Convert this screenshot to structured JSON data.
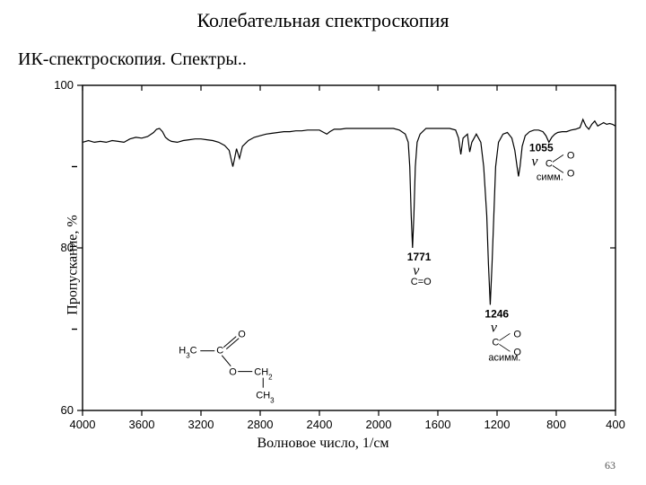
{
  "title": "Колебательная спектроскопия",
  "subtitle": "ИК-спектроскопия. Спектры..",
  "footer": "63",
  "ylabel": "Пропускание, %",
  "xlabel": "Волновое число, 1/см",
  "colors": {
    "bg": "#ffffff",
    "axis": "#000000",
    "line": "#000000",
    "text": "#000000"
  },
  "chart": {
    "type": "line",
    "xlim": [
      4000,
      400
    ],
    "ylim": [
      60,
      100
    ],
    "xticks": [
      4000,
      3600,
      3200,
      2800,
      2400,
      2000,
      1600,
      1200,
      800,
      400
    ],
    "yticks": [
      60,
      80,
      100
    ],
    "yminor": [
      70,
      90
    ],
    "line_width": 1.2,
    "tick_fontsize": 13,
    "label_fontsize": 16,
    "data": [
      [
        4000,
        93.0
      ],
      [
        3960,
        93.2
      ],
      [
        3920,
        93.0
      ],
      [
        3880,
        93.1
      ],
      [
        3840,
        93.0
      ],
      [
        3800,
        93.2
      ],
      [
        3760,
        93.1
      ],
      [
        3720,
        93.0
      ],
      [
        3680,
        93.4
      ],
      [
        3640,
        93.6
      ],
      [
        3600,
        93.5
      ],
      [
        3560,
        93.7
      ],
      [
        3520,
        94.2
      ],
      [
        3500,
        94.6
      ],
      [
        3480,
        94.7
      ],
      [
        3460,
        94.3
      ],
      [
        3440,
        93.6
      ],
      [
        3420,
        93.3
      ],
      [
        3400,
        93.1
      ],
      [
        3360,
        93.0
      ],
      [
        3320,
        93.2
      ],
      [
        3280,
        93.3
      ],
      [
        3240,
        93.4
      ],
      [
        3200,
        93.4
      ],
      [
        3160,
        93.3
      ],
      [
        3120,
        93.2
      ],
      [
        3080,
        93.0
      ],
      [
        3040,
        92.6
      ],
      [
        3010,
        92.0
      ],
      [
        2985,
        90.0
      ],
      [
        2975,
        90.8
      ],
      [
        2960,
        92.2
      ],
      [
        2940,
        91.0
      ],
      [
        2920,
        92.5
      ],
      [
        2880,
        93.2
      ],
      [
        2840,
        93.6
      ],
      [
        2800,
        93.8
      ],
      [
        2760,
        94.0
      ],
      [
        2720,
        94.1
      ],
      [
        2680,
        94.2
      ],
      [
        2640,
        94.3
      ],
      [
        2600,
        94.3
      ],
      [
        2560,
        94.4
      ],
      [
        2520,
        94.4
      ],
      [
        2480,
        94.5
      ],
      [
        2440,
        94.5
      ],
      [
        2400,
        94.5
      ],
      [
        2370,
        94.2
      ],
      [
        2350,
        94.0
      ],
      [
        2330,
        94.3
      ],
      [
        2300,
        94.6
      ],
      [
        2260,
        94.6
      ],
      [
        2220,
        94.7
      ],
      [
        2180,
        94.7
      ],
      [
        2140,
        94.7
      ],
      [
        2100,
        94.7
      ],
      [
        2060,
        94.7
      ],
      [
        2020,
        94.7
      ],
      [
        1980,
        94.7
      ],
      [
        1940,
        94.7
      ],
      [
        1900,
        94.7
      ],
      [
        1860,
        94.5
      ],
      [
        1820,
        94.0
      ],
      [
        1800,
        93.0
      ],
      [
        1790,
        90.0
      ],
      [
        1780,
        84.0
      ],
      [
        1771,
        80.0
      ],
      [
        1762,
        84.0
      ],
      [
        1752,
        90.0
      ],
      [
        1740,
        93.0
      ],
      [
        1720,
        94.0
      ],
      [
        1680,
        94.7
      ],
      [
        1640,
        94.7
      ],
      [
        1600,
        94.7
      ],
      [
        1560,
        94.7
      ],
      [
        1520,
        94.7
      ],
      [
        1480,
        94.5
      ],
      [
        1460,
        93.5
      ],
      [
        1445,
        91.5
      ],
      [
        1430,
        93.5
      ],
      [
        1400,
        94.0
      ],
      [
        1385,
        91.8
      ],
      [
        1370,
        93.0
      ],
      [
        1340,
        94.0
      ],
      [
        1310,
        93.0
      ],
      [
        1290,
        90.0
      ],
      [
        1270,
        84.0
      ],
      [
        1258,
        78.0
      ],
      [
        1246,
        73.0
      ],
      [
        1234,
        78.0
      ],
      [
        1222,
        84.0
      ],
      [
        1210,
        90.0
      ],
      [
        1190,
        93.0
      ],
      [
        1160,
        94.0
      ],
      [
        1130,
        94.2
      ],
      [
        1100,
        93.5
      ],
      [
        1080,
        92.0
      ],
      [
        1065,
        90.0
      ],
      [
        1055,
        88.8
      ],
      [
        1045,
        90.0
      ],
      [
        1030,
        92.5
      ],
      [
        1010,
        93.8
      ],
      [
        980,
        94.3
      ],
      [
        950,
        94.5
      ],
      [
        920,
        94.5
      ],
      [
        890,
        94.3
      ],
      [
        870,
        93.8
      ],
      [
        850,
        93.0
      ],
      [
        830,
        93.6
      ],
      [
        810,
        94.0
      ],
      [
        790,
        94.2
      ],
      [
        760,
        94.3
      ],
      [
        730,
        94.3
      ],
      [
        700,
        94.5
      ],
      [
        670,
        94.6
      ],
      [
        640,
        94.8
      ],
      [
        620,
        95.8
      ],
      [
        600,
        95.0
      ],
      [
        580,
        94.6
      ],
      [
        560,
        95.2
      ],
      [
        540,
        95.6
      ],
      [
        520,
        95.0
      ],
      [
        500,
        95.2
      ],
      [
        480,
        95.4
      ],
      [
        460,
        95.2
      ],
      [
        440,
        95.3
      ],
      [
        420,
        95.2
      ],
      [
        400,
        95.0
      ]
    ]
  },
  "peaks": [
    {
      "wn": 1771,
      "label": "1771",
      "sub": "C=O",
      "nu": true
    },
    {
      "wn": 1246,
      "label": "1246",
      "sub": "асимм.",
      "nu": true,
      "co2": true
    },
    {
      "wn": 1055,
      "label": "1055",
      "sub": "симм.",
      "nu": true,
      "co2": true
    }
  ],
  "molecule_label": {
    "line1a": "H",
    "line1b": "3",
    "line1c": "C",
    "line1d": "C",
    "line1e": "O",
    "line2a": "O",
    "line2b": "CH",
    "line2c": "2",
    "line3a": "CH",
    "line3b": "3"
  }
}
